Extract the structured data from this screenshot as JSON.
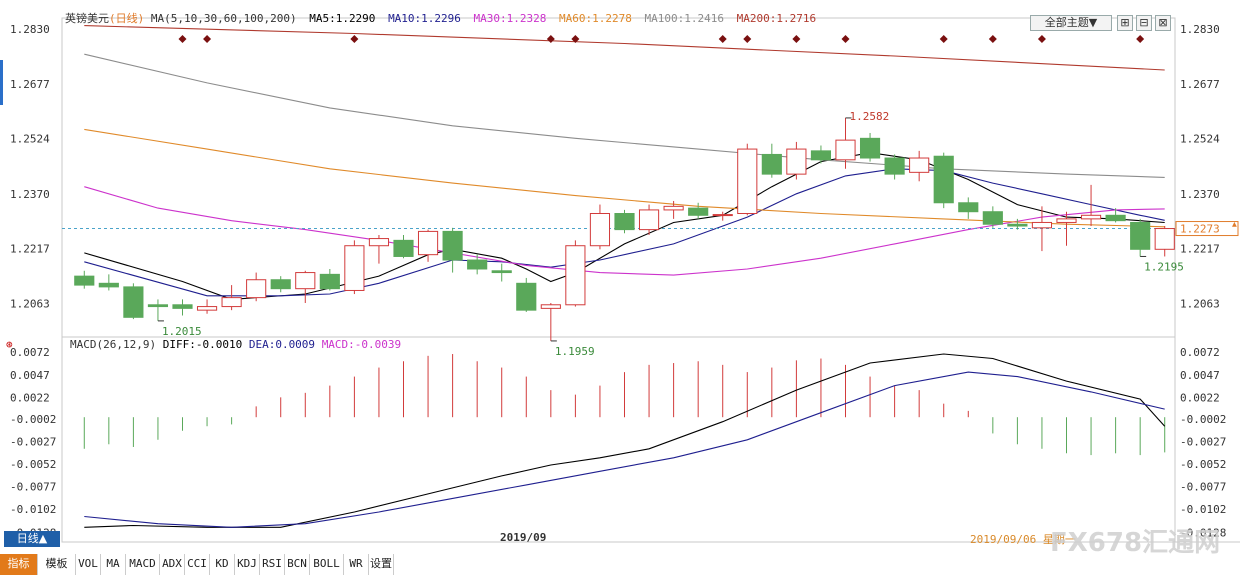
{
  "header": {
    "symbol": "英镑美元",
    "period_tag": "(日线)",
    "ma_spec": "MA(5,10,30,60,100,200)",
    "ma5": "MA5:1.2290",
    "ma10": "MA10:1.2296",
    "ma30": "MA30:1.2328",
    "ma60": "MA60:1.2278",
    "ma100": "MA100:1.2416",
    "ma200": "MA200:1.2716",
    "theme_button": "全部主题▼"
  },
  "macd_header": {
    "spec": "MACD(26,12,9)",
    "diff": "DIFF:-0.0010",
    "dea": "DEA:0.0009",
    "macd": "MACD:-0.0039"
  },
  "footer": {
    "period_button": "日线▲",
    "month_label": "2019/09",
    "date_label": "2019/09/06 星期一",
    "watermark": "FX678汇通网",
    "tabs": [
      "指标",
      "模板",
      "VOL",
      "MA",
      "MACD",
      "ADX",
      "CCI",
      "KD",
      "KDJ",
      "RSI",
      "BCN",
      "BOLL",
      "WR",
      "设置"
    ]
  },
  "colors": {
    "up": "#d23b3b",
    "down": "#5aa85a",
    "ma5": "#000000",
    "ma10": "#1f1f8f",
    "ma30": "#cc33cc",
    "ma60": "#e08a2a",
    "ma100": "#8c8c8c",
    "ma200": "#b03a2e",
    "current_price": "#e07b2a",
    "marker": "#7a1010"
  },
  "chart_data": [
    {
      "type": "candlestick",
      "title": "英镑美元 (日线)",
      "ylim": [
        1.197,
        1.285
      ],
      "y_ticks": [
        "1.2830",
        "1.2677",
        "1.2524",
        "1.2370",
        "1.2217",
        "1.2063"
      ],
      "current_price": 1.2273,
      "current_price_label": "1.2273",
      "annotations": [
        {
          "index": 3,
          "value": 1.2015,
          "label": "1.2015"
        },
        {
          "index": 19,
          "value": 1.1959,
          "label": "1.1959"
        },
        {
          "index": 31,
          "value": 1.2582,
          "label": "1.2582"
        },
        {
          "index": 43,
          "value": 1.2195,
          "label": "1.2195"
        }
      ],
      "marker_indices": [
        4,
        5,
        11,
        19,
        20,
        26,
        27,
        29,
        31,
        35,
        37,
        39,
        43
      ],
      "candles": [
        {
          "o": 1.214,
          "h": 1.2155,
          "l": 1.2105,
          "c": 1.2115
        },
        {
          "o": 1.212,
          "h": 1.2145,
          "l": 1.21,
          "c": 1.211
        },
        {
          "o": 1.211,
          "h": 1.212,
          "l": 1.202,
          "c": 1.2025
        },
        {
          "o": 1.206,
          "h": 1.2075,
          "l": 1.2015,
          "c": 1.2055
        },
        {
          "o": 1.206,
          "h": 1.2075,
          "l": 1.203,
          "c": 1.205
        },
        {
          "o": 1.2045,
          "h": 1.2075,
          "l": 1.2035,
          "c": 1.2055
        },
        {
          "o": 1.2055,
          "h": 1.2115,
          "l": 1.2045,
          "c": 1.208
        },
        {
          "o": 1.208,
          "h": 1.215,
          "l": 1.207,
          "c": 1.213
        },
        {
          "o": 1.213,
          "h": 1.214,
          "l": 1.2095,
          "c": 1.2105
        },
        {
          "o": 1.2105,
          "h": 1.2155,
          "l": 1.2065,
          "c": 1.215
        },
        {
          "o": 1.2145,
          "h": 1.216,
          "l": 1.21,
          "c": 1.2105
        },
        {
          "o": 1.21,
          "h": 1.224,
          "l": 1.209,
          "c": 1.2225
        },
        {
          "o": 1.2225,
          "h": 1.2255,
          "l": 1.2175,
          "c": 1.2245
        },
        {
          "o": 1.224,
          "h": 1.2255,
          "l": 1.219,
          "c": 1.2195
        },
        {
          "o": 1.22,
          "h": 1.227,
          "l": 1.218,
          "c": 1.2265
        },
        {
          "o": 1.2265,
          "h": 1.2275,
          "l": 1.215,
          "c": 1.2185
        },
        {
          "o": 1.2185,
          "h": 1.22,
          "l": 1.2145,
          "c": 1.216
        },
        {
          "o": 1.2155,
          "h": 1.2175,
          "l": 1.2125,
          "c": 1.215
        },
        {
          "o": 1.212,
          "h": 1.2135,
          "l": 1.204,
          "c": 1.2045
        },
        {
          "o": 1.205,
          "h": 1.2065,
          "l": 1.1959,
          "c": 1.206
        },
        {
          "o": 1.206,
          "h": 1.224,
          "l": 1.2055,
          "c": 1.2225
        },
        {
          "o": 1.2225,
          "h": 1.234,
          "l": 1.2215,
          "c": 1.2315
        },
        {
          "o": 1.2315,
          "h": 1.2325,
          "l": 1.226,
          "c": 1.227
        },
        {
          "o": 1.227,
          "h": 1.234,
          "l": 1.2255,
          "c": 1.2325
        },
        {
          "o": 1.2325,
          "h": 1.235,
          "l": 1.23,
          "c": 1.2335
        },
        {
          "o": 1.233,
          "h": 1.2345,
          "l": 1.23,
          "c": 1.231
        },
        {
          "o": 1.231,
          "h": 1.232,
          "l": 1.2295,
          "c": 1.2312
        },
        {
          "o": 1.2315,
          "h": 1.251,
          "l": 1.231,
          "c": 1.2495
        },
        {
          "o": 1.248,
          "h": 1.251,
          "l": 1.2415,
          "c": 1.2425
        },
        {
          "o": 1.2425,
          "h": 1.2515,
          "l": 1.241,
          "c": 1.2495
        },
        {
          "o": 1.249,
          "h": 1.2505,
          "l": 1.2455,
          "c": 1.2465
        },
        {
          "o": 1.2465,
          "h": 1.2582,
          "l": 1.244,
          "c": 1.252
        },
        {
          "o": 1.2525,
          "h": 1.254,
          "l": 1.246,
          "c": 1.247
        },
        {
          "o": 1.247,
          "h": 1.248,
          "l": 1.241,
          "c": 1.2425
        },
        {
          "o": 1.243,
          "h": 1.249,
          "l": 1.2405,
          "c": 1.247
        },
        {
          "o": 1.2475,
          "h": 1.2485,
          "l": 1.233,
          "c": 1.2345
        },
        {
          "o": 1.2345,
          "h": 1.236,
          "l": 1.23,
          "c": 1.232
        },
        {
          "o": 1.232,
          "h": 1.2335,
          "l": 1.2275,
          "c": 1.2285
        },
        {
          "o": 1.2285,
          "h": 1.23,
          "l": 1.227,
          "c": 1.228
        },
        {
          "o": 1.2275,
          "h": 1.2335,
          "l": 1.221,
          "c": 1.229
        },
        {
          "o": 1.229,
          "h": 1.232,
          "l": 1.2225,
          "c": 1.23
        },
        {
          "o": 1.23,
          "h": 1.2395,
          "l": 1.228,
          "c": 1.231
        },
        {
          "o": 1.231,
          "h": 1.233,
          "l": 1.229,
          "c": 1.2295
        },
        {
          "o": 1.229,
          "h": 1.23,
          "l": 1.2195,
          "c": 1.2215
        },
        {
          "o": 1.2215,
          "h": 1.228,
          "l": 1.2195,
          "c": 1.2273
        }
      ],
      "ma_lines": [
        {
          "name": "MA5",
          "points": [
            [
              0,
              1.2205
            ],
            [
              4,
              1.2125
            ],
            [
              6,
              1.2075
            ],
            [
              9,
              1.209
            ],
            [
              12,
              1.214
            ],
            [
              14,
              1.22
            ],
            [
              15,
              1.2215
            ],
            [
              17,
              1.219
            ],
            [
              18,
              1.216
            ],
            [
              19,
              1.2125
            ],
            [
              20,
              1.215
            ],
            [
              22,
              1.223
            ],
            [
              24,
              1.229
            ],
            [
              26,
              1.231
            ],
            [
              28,
              1.239
            ],
            [
              30,
              1.246
            ],
            [
              32,
              1.2485
            ],
            [
              34,
              1.2465
            ],
            [
              36,
              1.241
            ],
            [
              38,
              1.234
            ],
            [
              40,
              1.2305
            ],
            [
              42,
              1.23
            ],
            [
              44,
              1.229
            ]
          ]
        },
        {
          "name": "MA10",
          "points": [
            [
              0,
              1.218
            ],
            [
              5,
              1.2085
            ],
            [
              8,
              1.2085
            ],
            [
              10,
              1.209
            ],
            [
              12,
              1.212
            ],
            [
              15,
              1.2185
            ],
            [
              17,
              1.218
            ],
            [
              19,
              1.2165
            ],
            [
              21,
              1.2185
            ],
            [
              24,
              1.223
            ],
            [
              27,
              1.2305
            ],
            [
              29,
              1.237
            ],
            [
              31,
              1.242
            ],
            [
              33,
              1.244
            ],
            [
              35,
              1.2435
            ],
            [
              37,
              1.24
            ],
            [
              39,
              1.237
            ],
            [
              41,
              1.234
            ],
            [
              43,
              1.231
            ],
            [
              44,
              1.2296
            ]
          ]
        },
        {
          "name": "MA30",
          "points": [
            [
              0,
              1.239
            ],
            [
              3,
              1.233
            ],
            [
              6,
              1.2295
            ],
            [
              9,
              1.227
            ],
            [
              12,
              1.224
            ],
            [
              15,
              1.2205
            ],
            [
              18,
              1.217
            ],
            [
              21,
              1.215
            ],
            [
              24,
              1.2143
            ],
            [
              27,
              1.216
            ],
            [
              30,
              1.219
            ],
            [
              33,
              1.223
            ],
            [
              36,
              1.227
            ],
            [
              39,
              1.2305
            ],
            [
              42,
              1.2325
            ],
            [
              44,
              1.2328
            ]
          ]
        },
        {
          "name": "MA60",
          "points": [
            [
              0,
              1.255
            ],
            [
              5,
              1.2495
            ],
            [
              10,
              1.244
            ],
            [
              15,
              1.24
            ],
            [
              20,
              1.2365
            ],
            [
              25,
              1.2335
            ],
            [
              30,
              1.2315
            ],
            [
              35,
              1.23
            ],
            [
              40,
              1.2285
            ],
            [
              44,
              1.2278
            ]
          ]
        },
        {
          "name": "MA100",
          "points": [
            [
              0,
              1.276
            ],
            [
              5,
              1.268
            ],
            [
              10,
              1.261
            ],
            [
              15,
              1.256
            ],
            [
              20,
              1.2525
            ],
            [
              25,
              1.2495
            ],
            [
              30,
              1.2465
            ],
            [
              35,
              1.244
            ],
            [
              40,
              1.2425
            ],
            [
              44,
              1.2416
            ]
          ]
        },
        {
          "name": "MA200",
          "points": [
            [
              0,
              1.284
            ],
            [
              11,
              1.2818
            ],
            [
              22,
              1.279
            ],
            [
              33,
              1.2755
            ],
            [
              44,
              1.2716
            ]
          ]
        }
      ]
    },
    {
      "type": "macd",
      "title": "MACD(26,12,9)",
      "ylim": [
        -0.0125,
        0.008
      ],
      "y_ticks": [
        "0.0072",
        "0.0047",
        "0.0022",
        "-0.0002",
        "-0.0027",
        "-0.0052",
        "-0.0077",
        "-0.0102",
        "-0.0128"
      ],
      "histogram": [
        -0.0035,
        -0.003,
        -0.0033,
        -0.0025,
        -0.0015,
        -0.001,
        -0.0008,
        0.0012,
        0.0022,
        0.0027,
        0.0035,
        0.0045,
        0.0055,
        0.0062,
        0.0068,
        0.007,
        0.0062,
        0.0055,
        0.0045,
        0.003,
        0.0025,
        0.0035,
        0.005,
        0.0058,
        0.006,
        0.0062,
        0.0058,
        0.005,
        0.0055,
        0.0063,
        0.0065,
        0.0058,
        0.0045,
        0.0035,
        0.003,
        0.0015,
        0.0007,
        -0.0018,
        -0.003,
        -0.0035,
        -0.004,
        -0.0042,
        -0.004,
        -0.0042,
        -0.0039
      ],
      "diff": [
        [
          0,
          -0.0122
        ],
        [
          2,
          -0.012
        ],
        [
          5,
          -0.0122
        ],
        [
          8,
          -0.0122
        ],
        [
          11,
          -0.0105
        ],
        [
          14,
          -0.0085
        ],
        [
          17,
          -0.0065
        ],
        [
          19,
          -0.0053
        ],
        [
          21,
          -0.0045
        ],
        [
          23,
          -0.0035
        ],
        [
          26,
          -0.0005
        ],
        [
          29,
          0.003
        ],
        [
          32,
          0.006
        ],
        [
          35,
          0.007
        ],
        [
          37,
          0.0065
        ],
        [
          40,
          0.004
        ],
        [
          43,
          0.002
        ],
        [
          44,
          -0.001
        ]
      ],
      "dea": [
        [
          0,
          -0.011
        ],
        [
          3,
          -0.0118
        ],
        [
          6,
          -0.0122
        ],
        [
          9,
          -0.0118
        ],
        [
          12,
          -0.0105
        ],
        [
          15,
          -0.009
        ],
        [
          18,
          -0.0075
        ],
        [
          21,
          -0.006
        ],
        [
          24,
          -0.0045
        ],
        [
          27,
          -0.0025
        ],
        [
          30,
          0.0005
        ],
        [
          33,
          0.0035
        ],
        [
          36,
          0.005
        ],
        [
          38,
          0.0045
        ],
        [
          41,
          0.0028
        ],
        [
          44,
          0.0009
        ]
      ]
    }
  ]
}
